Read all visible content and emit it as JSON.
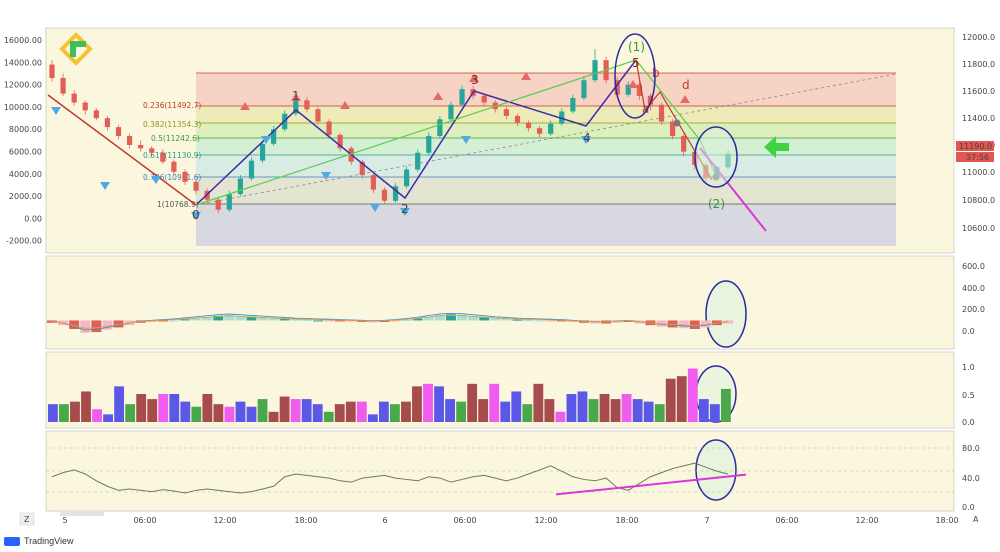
{
  "branding": {
    "footer_label": "TradingView",
    "logo_icon": "tradingview-logo-icon",
    "brand_icon": "liteforex-logo-icon"
  },
  "buttons": {
    "timezone": "Z",
    "auto_scale": "A"
  },
  "colors": {
    "bull_candle": "#26a69a",
    "bear_candle": "#e35f55",
    "wave_line": "#3f2aa8",
    "trend_line": "#56d14a",
    "highlight_circle": "#2b2ba0",
    "magenta_line": "#d838d8",
    "price_tag": "#e2564f",
    "arrow": "#3fd33f",
    "panel_bg": "#fbf7df"
  },
  "price_panel": {
    "left_axis_labels": [
      "16000.00",
      "14000.00",
      "12000.00",
      "10000.00",
      "8000.00",
      "6000.00",
      "4000.00",
      "2000.00",
      "0.00",
      "-2000.00"
    ],
    "right_axis_labels": [
      "12000.0",
      "11800.0",
      "11600.0",
      "11400.0",
      "11200.0",
      "11000.0",
      "10800.0",
      "10600.0"
    ],
    "current_price": "11190.0",
    "countdown": "37:56",
    "fib_levels": [
      {
        "label": "0.236(11492.7)",
        "color": "#c0392b"
      },
      {
        "label": "0.382(11354.3)",
        "color": "#8a9a1e"
      },
      {
        "label": "0.5(11242.6)",
        "color": "#3a9a3a"
      },
      {
        "label": "0.618(11130.9)",
        "color": "#2d9a8a"
      },
      {
        "label": "0.786(10971.6)",
        "color": "#3a7fc0"
      },
      {
        "label": "1(10768.9)",
        "color": "#555555"
      }
    ],
    "wave_labels": [
      {
        "text": "0",
        "color": "#444"
      },
      {
        "text": "1",
        "color": "#444"
      },
      {
        "text": "2",
        "color": "#444"
      },
      {
        "text": "3",
        "color": "#8a1c1c"
      },
      {
        "text": "4",
        "color": "#444"
      },
      {
        "text": "5",
        "color": "#8a1c1c"
      },
      {
        "text": "a",
        "color": "#c0392b"
      },
      {
        "text": "b",
        "color": "#c0392b"
      },
      {
        "text": "d",
        "color": "#c0392b"
      },
      {
        "text": "(1)",
        "color": "#2e9a3a"
      },
      {
        "text": "(2)",
        "color": "#2e9a3a"
      }
    ]
  },
  "macd_panel": {
    "axis_labels": [
      "600.0",
      "400.0",
      "200.0",
      "0.0"
    ]
  },
  "osc_panel": {
    "axis_labels": [
      "1.0",
      "0.5",
      "0.0"
    ]
  },
  "rsi_panel": {
    "axis_labels": [
      "80.0",
      "40.0",
      "0.0"
    ]
  },
  "time_axis": {
    "labels": [
      "5",
      "06:00",
      "12:00",
      "18:00",
      "6",
      "06:00",
      "12:00",
      "18:00",
      "7",
      "06:00",
      "12:00",
      "18:00"
    ]
  },
  "chart_data": [
    {
      "type": "candlestick",
      "panel": "price",
      "title": "",
      "candles": [
        [
          13800,
          12600,
          14200,
          12300
        ],
        [
          12600,
          11200,
          13000,
          11000
        ],
        [
          11200,
          10400,
          11500,
          10100
        ],
        [
          10400,
          9700,
          10600,
          9300
        ],
        [
          9700,
          9000,
          9900,
          8800
        ],
        [
          9000,
          8200,
          9200,
          7900
        ],
        [
          8200,
          7400,
          8400,
          7100
        ],
        [
          7400,
          6600,
          7600,
          6300
        ],
        [
          6600,
          6300,
          7000,
          6000
        ],
        [
          6300,
          5900,
          6500,
          5600
        ],
        [
          5900,
          5100,
          6200,
          4900
        ],
        [
          5100,
          4200,
          5300,
          3900
        ],
        [
          4200,
          3300,
          4400,
          3000
        ],
        [
          3300,
          2500,
          3500,
          2200
        ],
        [
          2500,
          1700,
          2700,
          1300
        ],
        [
          1700,
          800,
          1900,
          500
        ],
        [
          800,
          2200,
          2500,
          600
        ],
        [
          2200,
          3600,
          3900,
          2000
        ],
        [
          3600,
          5200,
          5500,
          3400
        ],
        [
          5200,
          6700,
          7000,
          5000
        ],
        [
          6700,
          8000,
          8300,
          6500
        ],
        [
          8000,
          9400,
          9700,
          7800
        ],
        [
          9400,
          10600,
          10900,
          9200
        ],
        [
          10600,
          9800,
          10900,
          9500
        ],
        [
          9800,
          8700,
          10000,
          8400
        ],
        [
          8700,
          7500,
          8900,
          7200
        ],
        [
          7500,
          6300,
          7700,
          6000
        ],
        [
          6300,
          5100,
          6500,
          4800
        ],
        [
          5100,
          3900,
          5300,
          3600
        ],
        [
          3900,
          2600,
          4100,
          2300
        ],
        [
          2600,
          1600,
          2800,
          1300
        ],
        [
          1600,
          2900,
          3200,
          1400
        ],
        [
          2900,
          4400,
          4700,
          2700
        ],
        [
          4400,
          5900,
          6200,
          4200
        ],
        [
          5900,
          7400,
          7700,
          5700
        ],
        [
          7400,
          8900,
          9200,
          7200
        ],
        [
          8900,
          10200,
          10500,
          8700
        ],
        [
          10200,
          11600,
          11900,
          10000
        ],
        [
          11600,
          11000,
          11900,
          10700
        ],
        [
          11000,
          10400,
          11200,
          10100
        ],
        [
          10400,
          9800,
          10600,
          9500
        ],
        [
          9800,
          9200,
          10000,
          8900
        ],
        [
          9200,
          8600,
          9400,
          8300
        ],
        [
          8600,
          8100,
          8800,
          7800
        ],
        [
          8100,
          7600,
          8300,
          7300
        ],
        [
          7600,
          8500,
          8800,
          7400
        ],
        [
          8500,
          9600,
          9900,
          8300
        ],
        [
          9600,
          10800,
          11100,
          9400
        ],
        [
          10800,
          12400,
          12800,
          10600
        ],
        [
          12400,
          14200,
          15200,
          12200
        ],
        [
          14200,
          12400,
          14500,
          12100
        ],
        [
          12400,
          11100,
          12700,
          10800
        ],
        [
          11100,
          12000,
          12300,
          10900
        ],
        [
          12000,
          11000,
          12200,
          10600
        ],
        [
          11000,
          10200,
          11200,
          9700
        ],
        [
          10200,
          8700,
          10400,
          8400
        ],
        [
          8700,
          7400,
          8900,
          7100
        ],
        [
          7400,
          6000,
          7600,
          5600
        ],
        [
          6000,
          4800,
          6200,
          4400
        ],
        [
          4800,
          3600,
          5000,
          3300
        ],
        [
          3600,
          4600,
          4800,
          3400
        ],
        [
          4600,
          5800,
          6100,
          4400
        ]
      ]
    },
    {
      "type": "histogram",
      "panel": "macd",
      "ylim": [
        -200,
        700
      ],
      "values": [
        -30,
        -60,
        -110,
        -160,
        -150,
        -120,
        -90,
        -60,
        -30,
        -20,
        -10,
        0,
        15,
        30,
        45,
        60,
        70,
        60,
        50,
        40,
        30,
        20,
        10,
        5,
        0,
        -5,
        -10,
        -15,
        -20,
        -25,
        -20,
        -10,
        5,
        25,
        50,
        70,
        80,
        75,
        60,
        45,
        30,
        20,
        10,
        5,
        0,
        -5,
        -10,
        -20,
        -30,
        -40,
        -40,
        -30,
        -20,
        -40,
        -60,
        -80,
        -90,
        -100,
        -110,
        -90,
        -60,
        -40
      ]
    },
    {
      "type": "bar",
      "panel": "oscillator",
      "ylim": [
        0,
        1.1
      ],
      "values": [
        0.35,
        0.35,
        0.4,
        0.6,
        0.25,
        0.15,
        0.7,
        0.35,
        0.55,
        0.45,
        0.55,
        0.55,
        0.4,
        0.3,
        0.55,
        0.35,
        0.3,
        0.4,
        0.3,
        0.45,
        0.2,
        0.5,
        0.45,
        0.45,
        0.35,
        0.2,
        0.35,
        0.4,
        0.4,
        0.15,
        0.4,
        0.35,
        0.4,
        0.7,
        0.75,
        0.7,
        0.45,
        0.4,
        0.75,
        0.45,
        0.75,
        0.4,
        0.6,
        0.35,
        0.75,
        0.45,
        0.2,
        0.55,
        0.6,
        0.45,
        0.55,
        0.45,
        0.55,
        0.45,
        0.4,
        0.35,
        0.85,
        0.9,
        1.05,
        0.45,
        0.35,
        0.65
      ],
      "colors_cycle": [
        "#5b58e8",
        "#ef5cef",
        "#a64c4c",
        "#49a849"
      ]
    },
    {
      "type": "line",
      "panel": "rsi",
      "ylim": [
        0,
        100
      ],
      "values": [
        46,
        52,
        56,
        50,
        40,
        32,
        26,
        28,
        26,
        24,
        27,
        25,
        22,
        26,
        28,
        26,
        24,
        22,
        24,
        28,
        32,
        46,
        50,
        48,
        46,
        44,
        40,
        38,
        44,
        46,
        48,
        44,
        42,
        40,
        46,
        44,
        38,
        42,
        46,
        48,
        44,
        40,
        44,
        50,
        56,
        62,
        54,
        46,
        42,
        40,
        44,
        30,
        26,
        36,
        46,
        52,
        58,
        62,
        66,
        60,
        54,
        50
      ],
      "trend_line_start": 20,
      "trend_line_end": 49
    }
  ]
}
